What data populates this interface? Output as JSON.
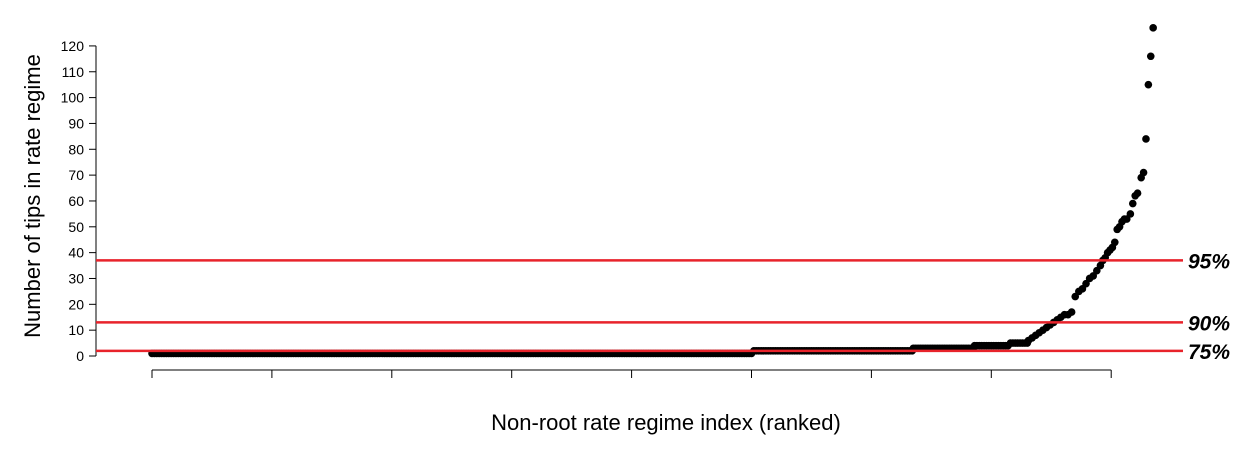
{
  "chart_data": {
    "type": "scatter",
    "title": "",
    "xlabel": "Non-root rate regime index (ranked)",
    "ylabel": "Number of tips in rate regime",
    "xlim": [
      0,
      1000
    ],
    "ylim": [
      0,
      128
    ],
    "y_ticks": [
      0,
      10,
      20,
      30,
      40,
      50,
      60,
      70,
      80,
      90,
      100,
      110,
      120
    ],
    "x_ticks_unlabeled": [
      0,
      100,
      200,
      300,
      400,
      500,
      600,
      700,
      800
    ],
    "point_color": "#000000",
    "steps": [
      {
        "x_from": 0,
        "x_to": 501,
        "y": 1
      },
      {
        "x_from": 502,
        "x_to": 634,
        "y": 2
      },
      {
        "x_from": 635,
        "x_to": 685,
        "y": 3
      },
      {
        "x_from": 686,
        "x_to": 715,
        "y": 4
      },
      {
        "x_from": 716,
        "x_to": 730,
        "y": 5
      }
    ],
    "points": [
      {
        "x": 731,
        "y": 6
      },
      {
        "x": 734,
        "y": 7
      },
      {
        "x": 737,
        "y": 8
      },
      {
        "x": 740,
        "y": 9
      },
      {
        "x": 743,
        "y": 10
      },
      {
        "x": 746,
        "y": 11
      },
      {
        "x": 749,
        "y": 12
      },
      {
        "x": 752,
        "y": 13
      },
      {
        "x": 755,
        "y": 14
      },
      {
        "x": 758,
        "y": 15
      },
      {
        "x": 761,
        "y": 16
      },
      {
        "x": 764,
        "y": 16
      },
      {
        "x": 767,
        "y": 17
      },
      {
        "x": 770,
        "y": 23
      },
      {
        "x": 773,
        "y": 25
      },
      {
        "x": 776,
        "y": 26
      },
      {
        "x": 779,
        "y": 28
      },
      {
        "x": 782,
        "y": 30
      },
      {
        "x": 785,
        "y": 31
      },
      {
        "x": 788,
        "y": 33
      },
      {
        "x": 791,
        "y": 35
      },
      {
        "x": 793,
        "y": 37
      },
      {
        "x": 795,
        "y": 38
      },
      {
        "x": 797,
        "y": 40
      },
      {
        "x": 799,
        "y": 41
      },
      {
        "x": 801,
        "y": 42
      },
      {
        "x": 803,
        "y": 44
      },
      {
        "x": 805,
        "y": 49
      },
      {
        "x": 807,
        "y": 50
      },
      {
        "x": 809,
        "y": 52
      },
      {
        "x": 811,
        "y": 53
      },
      {
        "x": 813,
        "y": 53
      },
      {
        "x": 816,
        "y": 55
      },
      {
        "x": 818,
        "y": 59
      },
      {
        "x": 820,
        "y": 62
      },
      {
        "x": 822,
        "y": 63
      },
      {
        "x": 825,
        "y": 69
      },
      {
        "x": 827,
        "y": 71
      },
      {
        "x": 829,
        "y": 84
      },
      {
        "x": 831,
        "y": 105
      },
      {
        "x": 833,
        "y": 116
      },
      {
        "x": 835,
        "y": 127
      }
    ],
    "reference_lines": [
      {
        "label": "95%",
        "y": 37,
        "color": "#e8232b"
      },
      {
        "label": "90%",
        "y": 13,
        "color": "#e8232b"
      },
      {
        "label": "75%",
        "y": 2,
        "color": "#e8232b"
      }
    ]
  }
}
